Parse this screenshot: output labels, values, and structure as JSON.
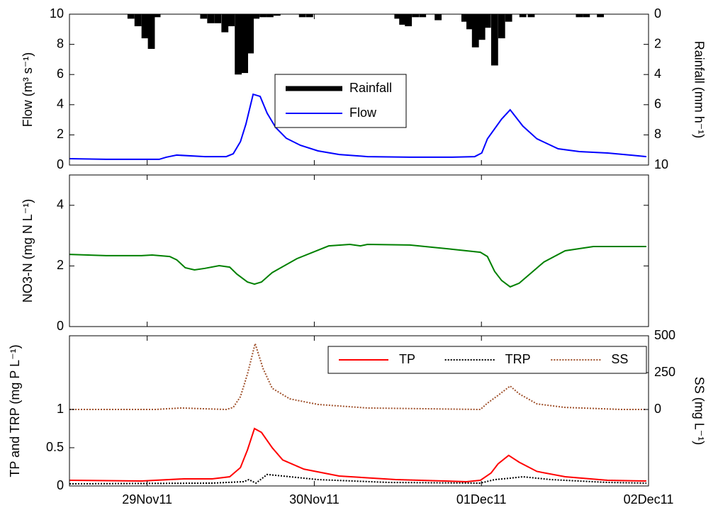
{
  "chart_data": [
    {
      "type": "line",
      "xlim": [
        -0.465,
        3
      ],
      "ylim": [
        0,
        10
      ],
      "yticks": [
        0,
        2,
        4,
        6,
        8,
        10
      ],
      "ylabel": "Flow (m³ s⁻¹)",
      "y2lim": [
        10,
        0
      ],
      "y2ticks": [
        0,
        2,
        4,
        6,
        8,
        10
      ],
      "y2label": "Rainfall (mm h⁻¹)",
      "legend": "center",
      "series": [
        {
          "name": "Rainfall",
          "type": "bar",
          "axis": "y2",
          "color": "#000000",
          "x": [
            -0.097,
            -0.055,
            -0.013,
            0.025,
            0.059,
            0.338,
            0.38,
            0.422,
            0.465,
            0.503,
            0.545,
            0.583,
            0.617,
            0.651,
            0.693,
            0.735,
            0.777,
            0.929,
            0.972,
            1.5,
            1.529,
            1.563,
            1.605,
            1.648,
            1.741,
            1.901,
            1.931,
            1.964,
            2.002,
            2.036,
            2.079,
            2.121,
            2.163,
            2.248,
            2.298,
            2.586,
            2.628,
            2.712
          ],
          "values": [
            0.3,
            0.8,
            1.6,
            2.3,
            0.2,
            0.3,
            0.6,
            0.6,
            1.2,
            0.8,
            4.0,
            3.9,
            2.6,
            0.3,
            0.2,
            0.2,
            0.1,
            0.2,
            0.2,
            0.3,
            0.7,
            0.8,
            0.2,
            0.2,
            0.4,
            0.5,
            1.0,
            2.2,
            1.7,
            0.9,
            3.4,
            1.6,
            0.5,
            0.2,
            0.2,
            0.2,
            0.2,
            0.2
          ]
        },
        {
          "name": "Flow",
          "color": "#0000ff",
          "x": [
            -0.465,
            -0.245,
            0.072,
            0.114,
            0.177,
            0.346,
            0.473,
            0.515,
            0.558,
            0.591,
            0.634,
            0.676,
            0.718,
            0.769,
            0.832,
            0.917,
            1.022,
            1.149,
            1.318,
            1.572,
            1.825,
            1.96,
            2.002,
            2.036,
            2.121,
            2.172,
            2.248,
            2.332,
            2.459,
            2.586,
            2.755,
            2.987
          ],
          "values": [
            0.42,
            0.38,
            0.38,
            0.52,
            0.66,
            0.56,
            0.56,
            0.75,
            1.55,
            2.72,
            4.69,
            4.55,
            3.43,
            2.49,
            1.78,
            1.31,
            0.94,
            0.7,
            0.56,
            0.52,
            0.52,
            0.56,
            0.8,
            1.74,
            3.05,
            3.66,
            2.58,
            1.74,
            1.08,
            0.89,
            0.8,
            0.56
          ]
        }
      ]
    },
    {
      "type": "line",
      "xlim": [
        -0.465,
        3
      ],
      "ylim": [
        0,
        5
      ],
      "yticks": [
        0,
        2,
        4
      ],
      "ylabel": "NO3-N (mg N L⁻¹)",
      "series": [
        {
          "color": "#008000",
          "x": [
            -0.465,
            -0.245,
            -0.034,
            0.03,
            0.135,
            0.177,
            0.228,
            0.283,
            0.346,
            0.431,
            0.494,
            0.537,
            0.6,
            0.642,
            0.684,
            0.748,
            0.896,
            1.086,
            1.213,
            1.276,
            1.318,
            1.572,
            1.825,
            1.994,
            2.036,
            2.079,
            2.121,
            2.172,
            2.226,
            2.374,
            2.501,
            2.67,
            2.987
          ],
          "values": [
            2.38,
            2.34,
            2.34,
            2.36,
            2.31,
            2.2,
            1.94,
            1.87,
            1.92,
            2.01,
            1.96,
            1.73,
            1.47,
            1.4,
            1.47,
            1.78,
            2.24,
            2.66,
            2.71,
            2.66,
            2.71,
            2.69,
            2.55,
            2.45,
            2.31,
            1.82,
            1.52,
            1.31,
            1.43,
            2.13,
            2.5,
            2.64,
            2.64
          ]
        }
      ]
    },
    {
      "type": "line",
      "xlim": [
        -0.465,
        3
      ],
      "ylim": [
        0,
        1.963
      ],
      "yticks": [
        0,
        0.5,
        1
      ],
      "ylabel": "TP and TRP (mg P L⁻¹)",
      "y2lim": [
        -519,
        500
      ],
      "y2ticks": [
        0,
        250,
        500
      ],
      "y2label": "SS (mg L⁻¹)",
      "xticks": [
        {
          "value": 0,
          "label": "29Nov11"
        },
        {
          "value": 1,
          "label": "30Nov11"
        },
        {
          "value": 2,
          "label": "01Dec11"
        },
        {
          "value": 3,
          "label": "02Dec11"
        }
      ],
      "legend": "top-right",
      "series": [
        {
          "name": "TP",
          "color": "#ff0000",
          "x": [
            -0.465,
            -0.034,
            0.22,
            0.389,
            0.494,
            0.558,
            0.6,
            0.642,
            0.684,
            0.748,
            0.811,
            0.938,
            1.149,
            1.487,
            1.91,
            1.994,
            2.058,
            2.1,
            2.163,
            2.226,
            2.332,
            2.501,
            2.755,
            2.987
          ],
          "values": [
            0.074,
            0.065,
            0.093,
            0.093,
            0.12,
            0.24,
            0.47,
            0.75,
            0.7,
            0.5,
            0.34,
            0.22,
            0.13,
            0.083,
            0.056,
            0.074,
            0.17,
            0.29,
            0.4,
            0.31,
            0.19,
            0.12,
            0.074,
            0.065
          ]
        },
        {
          "name": "TRP",
          "color": "#000000",
          "dash": "dotted",
          "x": [
            -0.465,
            0.389,
            0.579,
            0.608,
            0.651,
            0.718,
            0.811,
            1.022,
            1.445,
            1.994,
            2.079,
            2.163,
            2.248,
            2.417,
            2.755,
            2.987
          ],
          "values": [
            0.028,
            0.037,
            0.056,
            0.083,
            0.037,
            0.15,
            0.13,
            0.083,
            0.046,
            0.037,
            0.083,
            0.1,
            0.12,
            0.083,
            0.046,
            0.037
          ]
        },
        {
          "name": "SS",
          "color": "#a0522d",
          "dash": "dotted",
          "axis": "y2",
          "x": [
            -0.465,
            0.051,
            0.199,
            0.473,
            0.515,
            0.558,
            0.6,
            0.646,
            0.693,
            0.748,
            0.853,
            1.022,
            1.318,
            1.994,
            2.036,
            2.1,
            2.172,
            2.226,
            2.332,
            2.501,
            2.839,
            2.987
          ],
          "values": [
            0,
            0,
            10,
            0,
            14,
            87,
            240,
            447,
            279,
            144,
            72,
            34,
            10,
            0,
            43,
            96,
            159,
            106,
            38,
            14,
            0,
            0
          ]
        }
      ]
    }
  ]
}
